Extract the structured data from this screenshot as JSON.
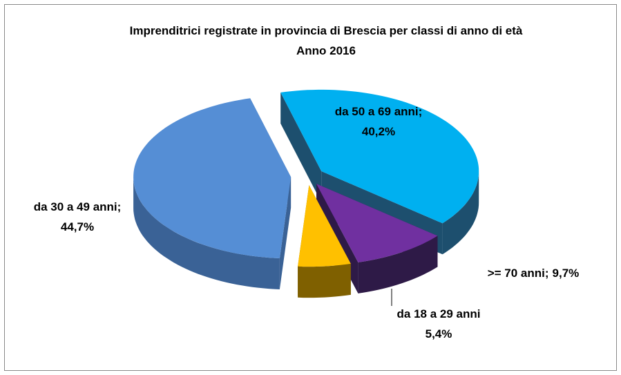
{
  "chart_data": {
    "type": "pie",
    "title": "Imprenditrici registrate in provincia di Brescia per classi di anno di età",
    "subtitle": "Anno 2016",
    "categories": [
      "da 50 a 69 anni;",
      ">= 70 anni;",
      "da 18 a 29 anni",
      "da 30 a 49 anni;"
    ],
    "values": [
      40.2,
      9.7,
      5.4,
      44.7
    ],
    "value_labels": [
      "40,2%",
      "9,7%",
      "5,4%",
      "44,7%"
    ],
    "colors": [
      "#00b0f0",
      "#7030a0",
      "#ffc000",
      "#558ed5"
    ],
    "side_colors": [
      "#1d4f6e",
      "#2e1a47",
      "#7f6000",
      "#3a6296"
    ]
  }
}
